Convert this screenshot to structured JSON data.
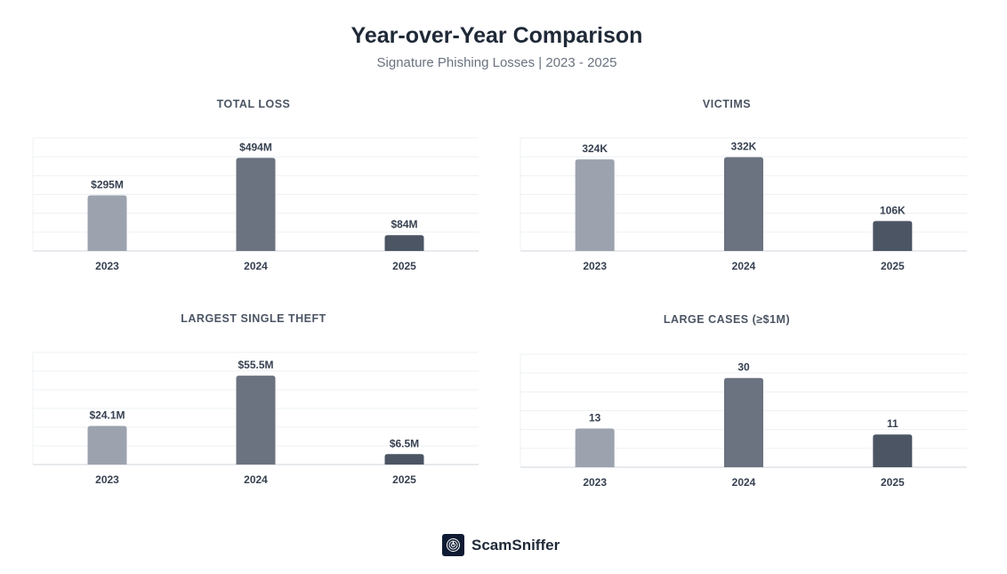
{
  "header": {
    "title": "Year-over-Year Comparison",
    "subtitle": "Signature Phishing Losses | 2023 - 2025"
  },
  "colors": [
    "#9ca3af",
    "#6b7280",
    "#4b5563"
  ],
  "chart_data": [
    {
      "type": "bar",
      "title": "TOTAL LOSS",
      "categories": [
        "2023",
        "2024",
        "2025"
      ],
      "values": [
        295,
        494,
        84
      ],
      "labels": [
        "$295M",
        "$494M",
        "$84M"
      ],
      "unit": "USD millions",
      "ylim": [
        0,
        600
      ],
      "grid": true
    },
    {
      "type": "bar",
      "title": "VICTIMS",
      "categories": [
        "2023",
        "2024",
        "2025"
      ],
      "values": [
        324,
        332,
        106
      ],
      "labels": [
        "324K",
        "332K",
        "106K"
      ],
      "unit": "thousands",
      "ylim": [
        0,
        400
      ],
      "grid": true
    },
    {
      "type": "bar",
      "title": "LARGEST SINGLE THEFT",
      "categories": [
        "2023",
        "2024",
        "2025"
      ],
      "values": [
        24.1,
        55.5,
        6.5
      ],
      "labels": [
        "$24.1M",
        "$55.5M",
        "$6.5M"
      ],
      "unit": "USD millions",
      "ylim": [
        0,
        70
      ],
      "grid": true
    },
    {
      "type": "bar",
      "title": "LARGE CASES (≥$1M)",
      "categories": [
        "2023",
        "2024",
        "2025"
      ],
      "values": [
        13,
        30,
        11
      ],
      "labels": [
        "13",
        "30",
        "11"
      ],
      "unit": "cases",
      "ylim": [
        0,
        38
      ],
      "grid": true
    }
  ],
  "footer": {
    "brand": "ScamSniffer"
  }
}
